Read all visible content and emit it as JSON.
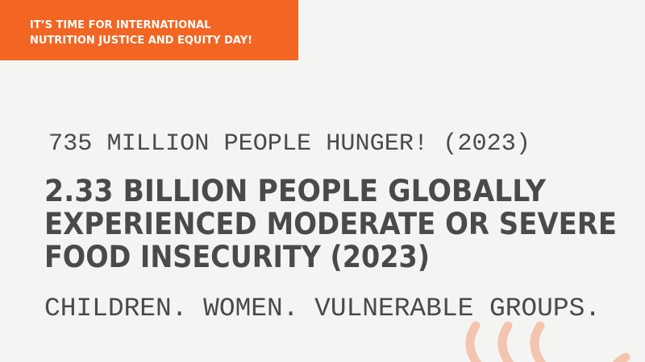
{
  "banner": {
    "lines": [
      "IT’S TIME FOR INTERNATIONAL",
      "NUTRITION JUSTICE AND EQUITY DAY!"
    ]
  },
  "subheading": "735 MILLION PEOPLE HUNGER! (2023)",
  "headline": {
    "lines": [
      "2.33 BILLION PEOPLE GLOBALLY",
      "EXPERIENCED MODERATE OR SEVERE",
      "FOOD INSECURITY (2023)"
    ]
  },
  "tagline": "CHILDREN. WOMEN. VULNERABLE GROUPS."
}
